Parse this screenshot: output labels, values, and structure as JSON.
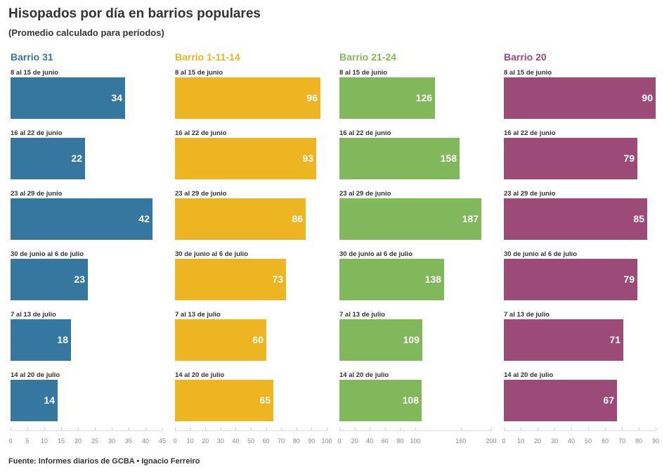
{
  "title": "Hisopados por día en barrios populares",
  "subtitle": "(Promedio calculado para períodos)",
  "source": "Fuente: Informes diarios de GCBA • Ignacio Ferreiro",
  "chart_data": [
    {
      "type": "bar",
      "title": "Barrio 31",
      "color": "#35779f",
      "categories": [
        "8 al 15 de junio",
        "16 al 22 de junio",
        "23 al 29 de junio",
        "30 de junio al 6 de julio",
        "7 al 13 de julio",
        "14 al 20 de julio"
      ],
      "values": [
        34,
        22,
        42,
        23,
        18,
        14
      ],
      "xlim": [
        0,
        45
      ],
      "ticks": [
        0,
        5,
        10,
        15,
        20,
        25,
        30,
        35,
        40,
        45
      ]
    },
    {
      "type": "bar",
      "title": "Barrio 1-11-14",
      "color": "#eeb523",
      "categories": [
        "8 al 15 de junio",
        "16 al 22 de junio",
        "23 al 29 de junio",
        "30 de junio al 6 de julio",
        "7 al 13 de julio",
        "14 al 20 de julio"
      ],
      "values": [
        96,
        93,
        86,
        73,
        60,
        65
      ],
      "xlim": [
        0,
        100
      ],
      "ticks": [
        0,
        10,
        20,
        30,
        40,
        50,
        60,
        70,
        80,
        90,
        100
      ]
    },
    {
      "type": "bar",
      "title": "Barrio 21-24",
      "color": "#80b85b",
      "categories": [
        "8 al 15 de junio",
        "16 al 22 de junio",
        "23 al 29 de junio",
        "30 de junio al 6 de julio",
        "7 al 13 de julio",
        "14 al 20 de julio"
      ],
      "values": [
        126,
        158,
        187,
        138,
        109,
        108
      ],
      "xlim": [
        0,
        200
      ],
      "ticks": [
        0,
        20,
        40,
        60,
        80,
        100,
        160,
        200
      ]
    },
    {
      "type": "bar",
      "title": "Barrio 20",
      "color": "#9c4a78",
      "categories": [
        "8 al 15 de junio",
        "16 al 22 de junio",
        "23 al 29 de junio",
        "30 de junio al 6 de julio",
        "7 al 13 de julio",
        "14 al 20 de julio"
      ],
      "values": [
        90,
        79,
        85,
        79,
        71,
        67
      ],
      "xlim": [
        0,
        90
      ],
      "ticks": [
        0,
        10,
        20,
        30,
        40,
        50,
        60,
        70,
        80,
        90
      ]
    }
  ]
}
